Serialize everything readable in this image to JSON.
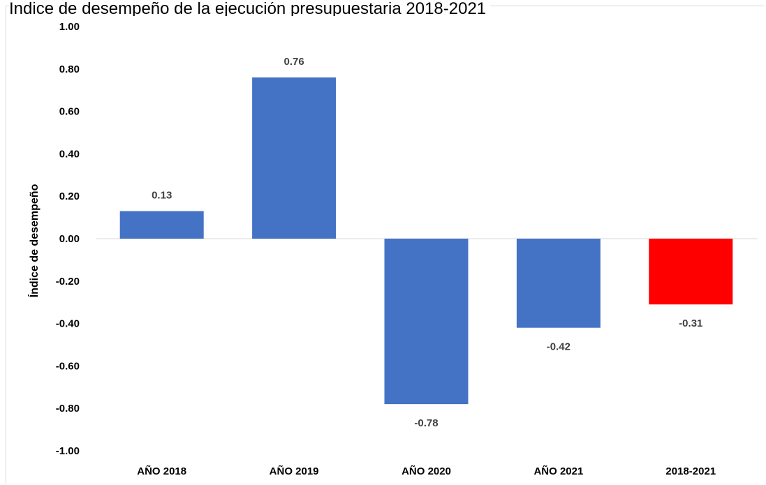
{
  "chart_data": {
    "type": "bar",
    "title": "Índice de desempeño de la ejecución presupuestaria  2018-2021",
    "xlabel": "",
    "ylabel": "Índice de desempeño",
    "categories": [
      "AÑO 2018",
      "AÑO 2019",
      "AÑO 2020",
      "AÑO 2021",
      "2018-2021"
    ],
    "values": [
      0.13,
      0.76,
      -0.78,
      -0.42,
      -0.31
    ],
    "data_labels": [
      "0.13",
      "0.76",
      "-0.78",
      "-0.42",
      "-0.31"
    ],
    "bar_colors": [
      "#4472c4",
      "#4472c4",
      "#4472c4",
      "#4472c4",
      "#ff0000"
    ],
    "ylim": [
      -1.0,
      1.0
    ],
    "yticks": [
      1.0,
      0.8,
      0.6,
      0.4,
      0.2,
      0.0,
      -0.2,
      -0.4,
      -0.6,
      -0.8,
      -1.0
    ],
    "ytick_labels": [
      "1.00",
      "0.80",
      "0.60",
      "0.40",
      "0.20",
      "0.00",
      "-0.20",
      "-0.40",
      "-0.60",
      "-0.80",
      "-1.00"
    ],
    "grid": false,
    "legend": "none"
  }
}
